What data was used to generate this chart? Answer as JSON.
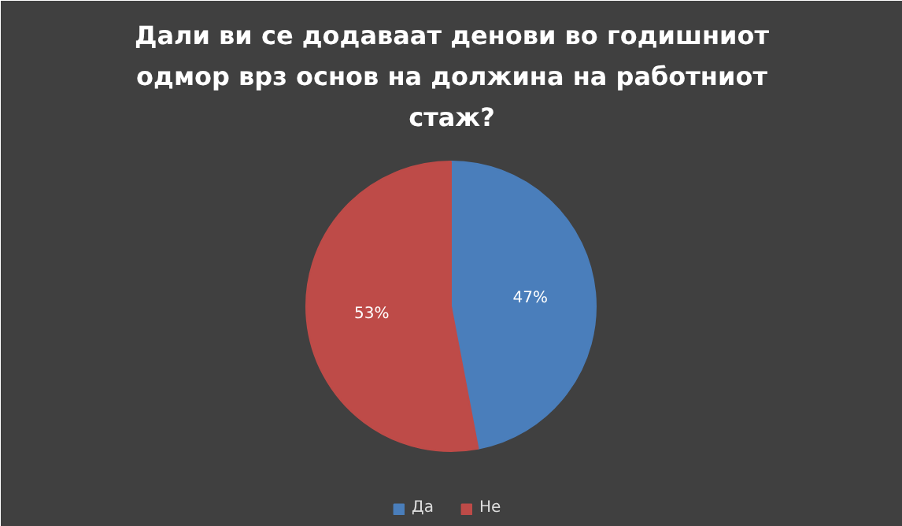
{
  "chart_data": {
    "type": "pie",
    "title": "Дали ви се додаваат денови во годишниот одмор врз основ на должина на работниот стаж?",
    "categories": [
      "Да",
      "Не"
    ],
    "values": [
      47,
      53
    ],
    "colors": [
      "#4a7ebb",
      "#be4b48"
    ],
    "value_labels": [
      "47%",
      "53%"
    ],
    "legend": "bottom"
  }
}
